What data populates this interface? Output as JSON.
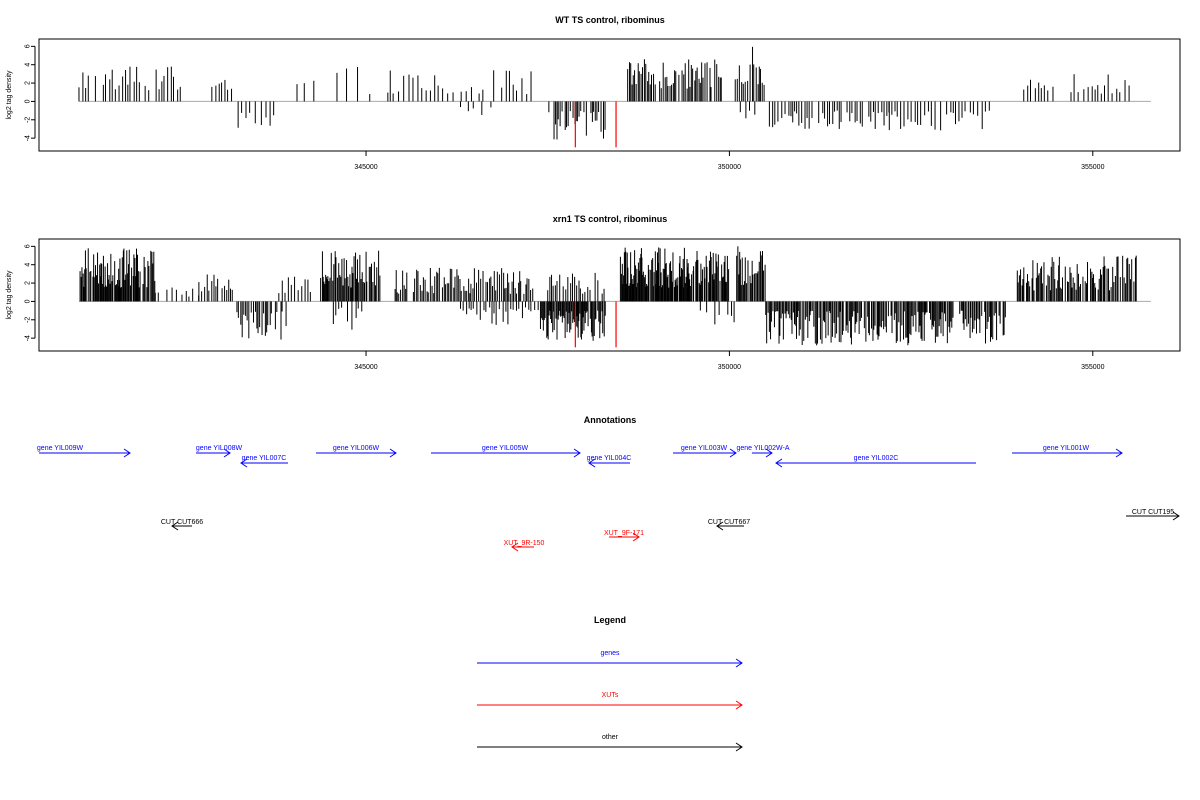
{
  "chart_data": [
    {
      "type": "bar",
      "title": "WT TS control, ribominus",
      "ylabel": "log2 tag density",
      "xlim": [
        340500,
        356200
      ],
      "ylim": [
        -5.4,
        6.8
      ],
      "yticks": [
        "6",
        "4",
        "2",
        "0",
        "-2",
        "-4"
      ],
      "ytick_values": [
        6,
        4,
        2,
        0,
        -2,
        -4
      ],
      "xticks": [
        "345000",
        "350000",
        "355000"
      ],
      "xtick_values": [
        345000,
        350000,
        355000
      ],
      "highlight_color": "#ff0000",
      "bar_color": "#000000",
      "highlights": [
        {
          "x": 347880,
          "y": -5.0
        },
        {
          "x": 348440,
          "y": -5.0
        }
      ],
      "segments": [
        {
          "from": 341050,
          "to": 342500,
          "lo": 1.2,
          "hi": 3.8,
          "step": 45,
          "sign": 1
        },
        {
          "from": 342760,
          "to": 343150,
          "lo": 1.0,
          "hi": 3.2,
          "step": 40,
          "sign": 1
        },
        {
          "from": 343240,
          "to": 343800,
          "lo": 1.2,
          "hi": 3.0,
          "step": 70,
          "sign": -1
        },
        {
          "from": 344050,
          "to": 344350,
          "lo": 1.0,
          "hi": 2.8,
          "step": 110,
          "sign": 1
        },
        {
          "from": 344600,
          "to": 345100,
          "lo": 0.8,
          "hi": 4.0,
          "step": 120,
          "sign": 1
        },
        {
          "from": 345300,
          "to": 347300,
          "lo": 0.8,
          "hi": 3.6,
          "step": 55,
          "sign": 1
        },
        {
          "from": 346300,
          "to": 346800,
          "lo": 0.6,
          "hi": 1.5,
          "step": 90,
          "sign": -1
        },
        {
          "from": 347500,
          "to": 348300,
          "lo": 1.0,
          "hi": 4.2,
          "step": 25,
          "sign": -1
        },
        {
          "from": 348600,
          "to": 349900,
          "lo": 1.4,
          "hi": 4.6,
          "step": 22,
          "sign": 1
        },
        {
          "from": 350080,
          "to": 350500,
          "lo": 1.8,
          "hi": 6.2,
          "step": 25,
          "sign": 1
        },
        {
          "from": 350150,
          "to": 350400,
          "lo": 1.0,
          "hi": 2.6,
          "step": 60,
          "sign": -1
        },
        {
          "from": 350550,
          "to": 352200,
          "lo": 1.0,
          "hi": 3.0,
          "step": 40,
          "sign": -1
        },
        {
          "from": 352200,
          "to": 353600,
          "lo": 1.0,
          "hi": 3.2,
          "step": 45,
          "sign": -1
        },
        {
          "from": 354050,
          "to": 354500,
          "lo": 1.0,
          "hi": 2.4,
          "step": 55,
          "sign": 1
        },
        {
          "from": 354700,
          "to": 355500,
          "lo": 0.8,
          "hi": 3.0,
          "step": 60,
          "sign": 1
        }
      ]
    },
    {
      "type": "bar",
      "title": "xrn1 TS control, ribominus",
      "ylabel": "log2 tag density",
      "xlim": [
        340500,
        356200
      ],
      "ylim": [
        -5.4,
        6.8
      ],
      "yticks": [
        "6",
        "4",
        "2",
        "0",
        "-2",
        "-4"
      ],
      "ytick_values": [
        6,
        4,
        2,
        0,
        -2,
        -4
      ],
      "xticks": [
        "345000",
        "350000",
        "355000"
      ],
      "xtick_values": [
        345000,
        350000,
        355000
      ],
      "highlight_color": "#ff0000",
      "bar_color": "#000000",
      "highlights": [
        {
          "x": 347880,
          "y": -5.0
        },
        {
          "x": 348440,
          "y": -5.0
        }
      ],
      "segments": [
        {
          "from": 341050,
          "to": 342100,
          "lo": 1.5,
          "hi": 5.8,
          "step": 12,
          "sign": 1
        },
        {
          "from": 342100,
          "to": 342700,
          "lo": 0.5,
          "hi": 1.6,
          "step": 60,
          "sign": 1
        },
        {
          "from": 342700,
          "to": 343200,
          "lo": 1.0,
          "hi": 3.0,
          "step": 30,
          "sign": 1
        },
        {
          "from": 343200,
          "to": 343900,
          "lo": 1.0,
          "hi": 4.2,
          "step": 25,
          "sign": -1
        },
        {
          "from": 343800,
          "to": 344400,
          "lo": 0.8,
          "hi": 3.0,
          "step": 40,
          "sign": 1
        },
        {
          "from": 344400,
          "to": 345200,
          "lo": 1.5,
          "hi": 5.8,
          "step": 15,
          "sign": 1
        },
        {
          "from": 344500,
          "to": 345000,
          "lo": 0.6,
          "hi": 3.2,
          "step": 45,
          "sign": -1
        },
        {
          "from": 345400,
          "to": 347300,
          "lo": 0.8,
          "hi": 3.8,
          "step": 22,
          "sign": 1
        },
        {
          "from": 346300,
          "to": 347400,
          "lo": 0.6,
          "hi": 2.6,
          "step": 40,
          "sign": -1
        },
        {
          "from": 347400,
          "to": 348300,
          "lo": 1.0,
          "hi": 4.4,
          "step": 12,
          "sign": -1
        },
        {
          "from": 347500,
          "to": 348300,
          "lo": 0.8,
          "hi": 3.2,
          "step": 30,
          "sign": 1
        },
        {
          "from": 348500,
          "to": 350000,
          "lo": 1.5,
          "hi": 6.0,
          "step": 10,
          "sign": 1
        },
        {
          "from": 349600,
          "to": 350100,
          "lo": 0.8,
          "hi": 2.6,
          "step": 50,
          "sign": -1
        },
        {
          "from": 350100,
          "to": 350500,
          "lo": 1.5,
          "hi": 6.2,
          "step": 14,
          "sign": 1
        },
        {
          "from": 350500,
          "to": 353800,
          "lo": 1.0,
          "hi": 4.8,
          "step": 16,
          "sign": -1
        },
        {
          "from": 353950,
          "to": 355600,
          "lo": 1.2,
          "hi": 5.0,
          "step": 16,
          "sign": 1
        }
      ]
    }
  ],
  "annotations": {
    "title": "Annotations",
    "genes": [
      {
        "label": "gene YIL009W",
        "dir": 1
      },
      {
        "label": "gene YIL008W",
        "dir": 1
      },
      {
        "label": "gene YIL007C",
        "dir": -1
      },
      {
        "label": "gene YIL006W",
        "dir": 1
      },
      {
        "label": "gene YIL005W",
        "dir": 1
      },
      {
        "label": "gene YIL004C",
        "dir": -1
      },
      {
        "label": "gene YIL003W",
        "dir": 1
      },
      {
        "label": "gene YIL002W-A",
        "dir": 1
      },
      {
        "label": "gene YIL002C",
        "dir": -1
      },
      {
        "label": "gene YIL001W",
        "dir": 1
      }
    ],
    "xuts": [
      {
        "label": "XUT_9R-150",
        "dir": -1
      },
      {
        "label": "XUT_9F-171",
        "dir": 1
      }
    ],
    "other": [
      {
        "label": "CUT CUT666",
        "dir": -1
      },
      {
        "label": "CUT CUT667",
        "dir": -1
      },
      {
        "label": "CUT CUT195",
        "dir": 1
      }
    ]
  },
  "legend": {
    "title": "Legend",
    "items": [
      {
        "label": "genes",
        "color": "#0000ff"
      },
      {
        "label": "XUTs",
        "color": "#ff0000"
      },
      {
        "label": "other",
        "color": "#000000"
      }
    ]
  },
  "colors": {
    "genes": "#0000ff",
    "xuts": "#ff0000",
    "other": "#000000"
  }
}
